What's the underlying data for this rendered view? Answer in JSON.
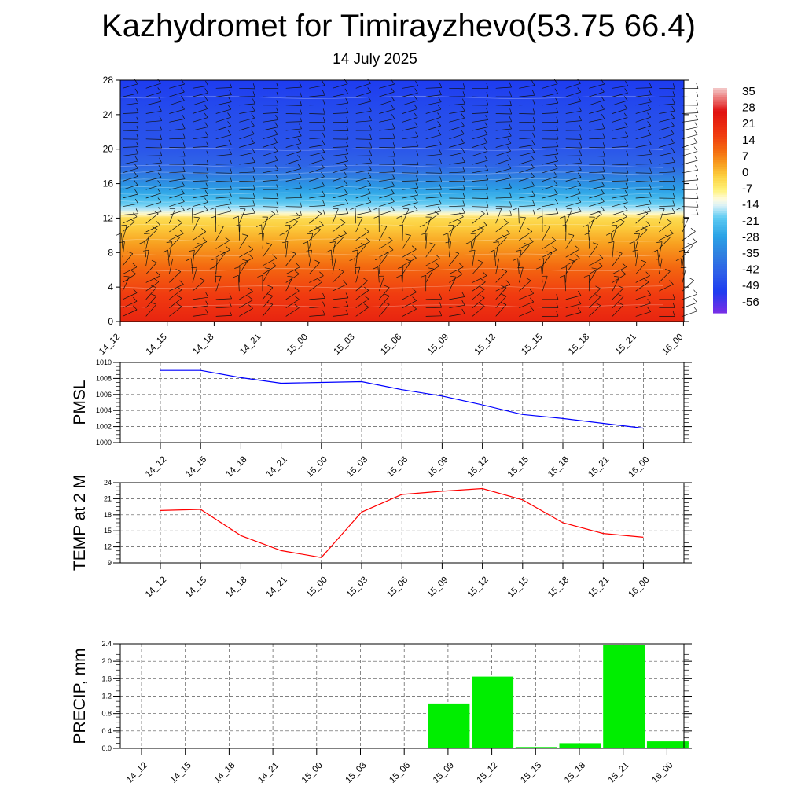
{
  "title": "Kazhydromet for Timirayzhevo(53.75 66.4)",
  "subtitle": "14 July 2025",
  "time_labels": [
    "14_12",
    "14_15",
    "14_18",
    "14_21",
    "15_00",
    "15_03",
    "15_06",
    "15_09",
    "15_12",
    "15_15",
    "15_18",
    "15_21",
    "16_00"
  ],
  "chart_data": [
    {
      "type": "heatmap",
      "title": "",
      "xlabel": "",
      "ylabel": "",
      "x": [
        "14_12",
        "14_15",
        "14_18",
        "14_21",
        "15_00",
        "15_03",
        "15_06",
        "15_09",
        "15_12",
        "15_15",
        "15_18",
        "15_21",
        "16_00"
      ],
      "y_ticks": [
        0,
        4,
        8,
        12,
        16,
        20,
        24,
        28
      ],
      "ylim": [
        0,
        28
      ],
      "colorbar_labels": [
        "35",
        "28",
        "21",
        "14",
        "7",
        "0",
        "-7",
        "-14",
        "-21",
        "-28",
        "-35",
        "-42",
        "-49",
        "-56"
      ],
      "colorbar_range": [
        -59,
        38
      ],
      "colorbar_stops": [
        {
          "v": 38,
          "c": "#f4cccc"
        },
        {
          "v": 28,
          "c": "#e01010"
        },
        {
          "v": 18,
          "c": "#f03a10"
        },
        {
          "v": 11,
          "c": "#f46a10"
        },
        {
          "v": 5,
          "c": "#f8a020"
        },
        {
          "v": 0,
          "c": "#fcd040"
        },
        {
          "v": -6,
          "c": "#fff27a"
        },
        {
          "v": -10,
          "c": "#fffbe0"
        },
        {
          "v": -13,
          "c": "#d6f0f8"
        },
        {
          "v": -18,
          "c": "#5ecbf2"
        },
        {
          "v": -26,
          "c": "#2aa2e6"
        },
        {
          "v": -34,
          "c": "#2f7fe0"
        },
        {
          "v": -42,
          "c": "#2e5ee8"
        },
        {
          "v": -50,
          "c": "#1e3cf0"
        },
        {
          "v": -59,
          "c": "#7a2ee6"
        }
      ],
      "profile_by_height": [
        {
          "h": 0,
          "t": 23
        },
        {
          "h": 3,
          "t": 18
        },
        {
          "h": 6,
          "t": 12
        },
        {
          "h": 9,
          "t": 5
        },
        {
          "h": 12,
          "t": -2
        },
        {
          "h": 12.8,
          "t": -13
        },
        {
          "h": 14,
          "t": -20
        },
        {
          "h": 16,
          "t": -30
        },
        {
          "h": 18,
          "t": -40
        },
        {
          "h": 20,
          "t": -44
        },
        {
          "h": 24,
          "t": -46
        },
        {
          "h": 28,
          "t": -50
        }
      ],
      "wind_barbs": "present"
    },
    {
      "type": "line",
      "ylabel": "PMSL",
      "ylim": [
        1000,
        1010
      ],
      "y_ticks": [
        1000,
        1002,
        1004,
        1006,
        1008,
        1010
      ],
      "categories": [
        "14_12",
        "14_15",
        "14_18",
        "14_21",
        "15_00",
        "15_03",
        "15_06",
        "15_09",
        "15_12",
        "15_15",
        "15_18",
        "15_21",
        "16_00"
      ],
      "values": [
        1009.0,
        1009.0,
        1008.1,
        1007.4,
        1007.5,
        1007.6,
        1006.6,
        1005.8,
        1004.7,
        1003.5,
        1003.0,
        1002.4,
        1001.8
      ],
      "color": "#0000ff"
    },
    {
      "type": "line",
      "ylabel": "TEMP at 2 M",
      "ylim": [
        9,
        24
      ],
      "y_ticks": [
        9,
        12,
        15,
        18,
        21,
        24
      ],
      "categories": [
        "14_12",
        "14_15",
        "14_18",
        "14_21",
        "15_00",
        "15_03",
        "15_06",
        "15_09",
        "15_12",
        "15_15",
        "15_18",
        "15_21",
        "16_00"
      ],
      "values": [
        18.8,
        19.0,
        14.1,
        11.3,
        10.0,
        18.5,
        21.8,
        22.4,
        22.9,
        20.8,
        16.5,
        14.5,
        13.8
      ],
      "color": "#ff0000"
    },
    {
      "type": "bar",
      "ylabel": "PRECIP, mm",
      "ylim": [
        0,
        2.4
      ],
      "y_ticks": [
        "0.0",
        "0.4",
        "0.8",
        "1.2",
        "1.6",
        "2.0",
        "2.4"
      ],
      "categories": [
        "14_12",
        "14_15",
        "14_18",
        "14_21",
        "15_00",
        "15_03",
        "15_06",
        "15_09",
        "15_12",
        "15_15",
        "15_18",
        "15_21",
        "16_00"
      ],
      "values": [
        0,
        0,
        0,
        0,
        0,
        0,
        0,
        1.03,
        1.65,
        0.03,
        0.12,
        2.38,
        0.16
      ],
      "color": "#00ee00"
    }
  ]
}
